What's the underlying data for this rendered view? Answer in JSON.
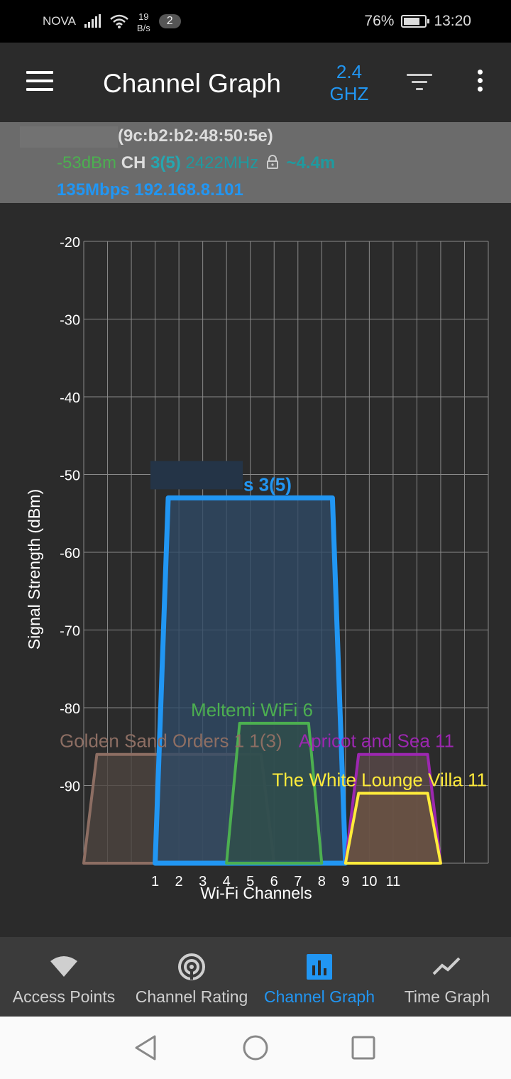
{
  "status_bar": {
    "carrier": "NOVA",
    "speed_value": "19",
    "speed_unit": "B/s",
    "notification_count": "2",
    "battery": "76%",
    "battery_level": 0.76,
    "time": "13:20"
  },
  "app_bar": {
    "title": "Channel Graph",
    "band_value": "2.4",
    "band_unit": "GHZ",
    "icons": [
      "menu-icon",
      "filter-icon",
      "more-vert-icon"
    ]
  },
  "connection": {
    "bssid": "(9c:b2:b2:48:50:5e)",
    "signal": "-53dBm",
    "ch_label": "CH",
    "channel": "3(5)",
    "frequency": "2422MHz",
    "distance": "~4.4m",
    "speed": "135Mbps",
    "ip": "192.168.8.101",
    "colors": {
      "signal": "#4caf50",
      "channel": "#26a6b0",
      "frequency": "#1f9a9f",
      "link": "#2196f3"
    }
  },
  "chart_data": {
    "type": "area",
    "xlabel": "Wi-Fi Channels",
    "ylabel": "Signal Strength (dBm)",
    "y_ticks": [
      "-20",
      "-30",
      "-40",
      "-50",
      "-60",
      "-70",
      "-80",
      "-90"
    ],
    "x_ticks": [
      "1",
      "2",
      "3",
      "4",
      "5",
      "6",
      "7",
      "8",
      "9",
      "10",
      "11"
    ],
    "xlim": [
      -2,
      15
    ],
    "ylim": [
      -100,
      -20
    ],
    "grid": true,
    "series": [
      {
        "label": "s 3(5)",
        "channel_start": 1,
        "channel_end": 9,
        "level": -53,
        "color": "#2196f3",
        "fill": "#2f4a66"
      },
      {
        "label": "Golden Sand Orders 1  1(3)",
        "channel_start": -2,
        "channel_end": 6,
        "level": -86,
        "color": "#8d6e63",
        "fill": "#4e4540"
      },
      {
        "label": "Meltemi WiFi 6",
        "channel_start": 4,
        "channel_end": 8,
        "level": -82,
        "color": "#4caf50",
        "fill": "#2f4f4a"
      },
      {
        "label": "Apricot and Sea 11",
        "channel_start": 9,
        "channel_end": 13,
        "level": -86,
        "color": "#9c27b0",
        "fill": "#5a4a4a"
      },
      {
        "label": "The White Lounge Villa 11",
        "channel_start": 9,
        "channel_end": 13,
        "level": -91,
        "color": "#ffeb3b",
        "fill": "#6b5444"
      }
    ]
  },
  "bottom_nav": [
    {
      "label": "Access Points",
      "icon": "wifi-icon",
      "active": false
    },
    {
      "label": "Channel Rating",
      "icon": "signal-rating-icon",
      "active": false
    },
    {
      "label": "Channel Graph",
      "icon": "bar-chart-icon",
      "active": true
    },
    {
      "label": "Time Graph",
      "icon": "line-chart-icon",
      "active": false
    }
  ],
  "system_nav": [
    "back-icon",
    "home-icon",
    "recents-icon"
  ]
}
